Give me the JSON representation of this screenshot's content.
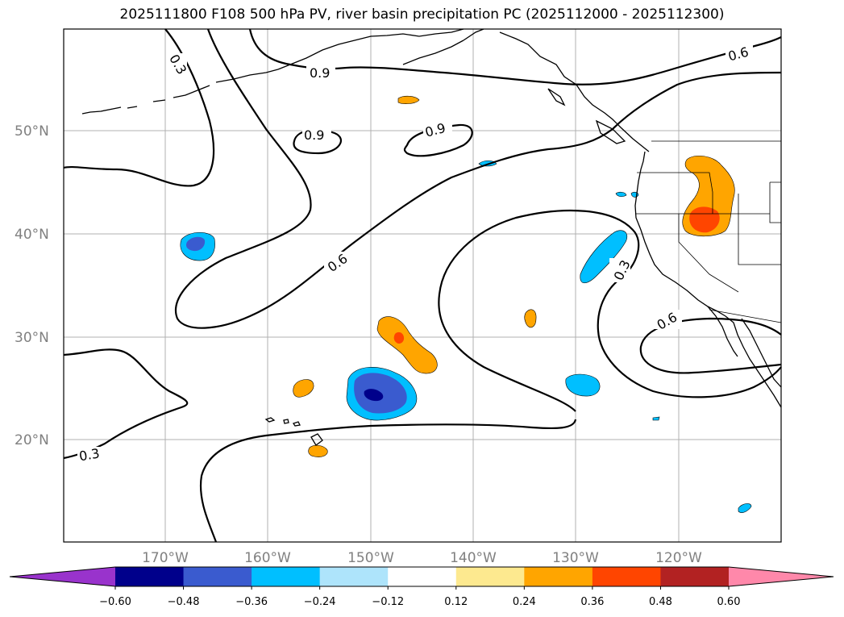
{
  "title": "2025111800 F108 500 hPa PV, river basin precipitation PC (2025112000 - 2025112300)",
  "map": {
    "lat_labels": [
      "50°N",
      "40°N",
      "30°N",
      "20°N"
    ],
    "lon_labels": [
      "170°W",
      "160°W",
      "150°W",
      "140°W",
      "130°W",
      "120°W"
    ],
    "contour_labels": [
      "0.3",
      "0.9",
      "0.6",
      "0.9",
      "0.9",
      "0.6",
      "0.3",
      "0.6",
      "0.3"
    ],
    "grid": true,
    "contour_color": "#000000"
  },
  "colorbar": {
    "ticks": [
      "−0.60",
      "−0.48",
      "−0.36",
      "−0.24",
      "−0.12",
      "0.12",
      "0.24",
      "0.36",
      "0.48",
      "0.60"
    ],
    "colors": [
      "#9933cc",
      "#00008b",
      "#3a5bcf",
      "#00bfff",
      "#aee4fb",
      "#ffffff",
      "#fde98f",
      "#ffa500",
      "#ff4500",
      "#b22222",
      "#ff88aa"
    ],
    "extend": "both"
  }
}
